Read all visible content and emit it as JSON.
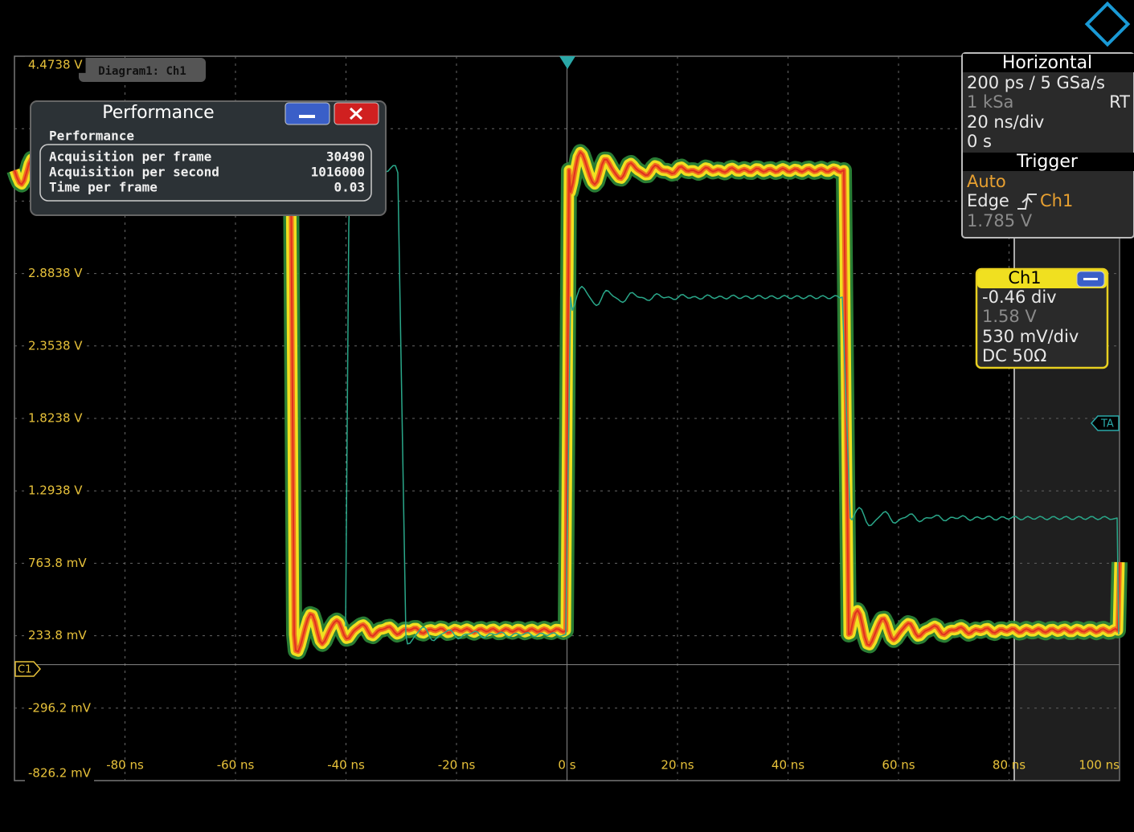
{
  "diagram_label": "Diagram1: Ch1",
  "y_axis_labels": [
    "4.4738 V",
    "2.8838 V",
    "2.3538 V",
    "1.8238 V",
    "1.2938 V",
    "763.8 mV",
    "233.8 mV",
    "-296.2 mV",
    "-826.2 mV"
  ],
  "x_axis_labels": [
    "-80 ns",
    "-60 ns",
    "-40 ns",
    "-20 ns",
    "0 s",
    "20 ns",
    "40 ns",
    "60 ns",
    "80 ns",
    "100 ns"
  ],
  "performance": {
    "title": "Performance",
    "section": "Performance",
    "rows": [
      [
        "Acquisition per frame",
        "30490"
      ],
      [
        "Acquisition per second",
        "1016000"
      ],
      [
        "Time per frame",
        "0.03"
      ]
    ]
  },
  "horizontal": {
    "title": "Horizontal",
    "resolution": "200 ps / 5 GSa/s",
    "record_length": "1 kSa",
    "mode": "RT",
    "scale": "20 ns/div",
    "position": "0 s"
  },
  "trigger": {
    "title": "Trigger",
    "mode": "Auto",
    "type": "Edge",
    "source": "Ch1",
    "level": "1.785 V"
  },
  "channel": {
    "title": "Ch1",
    "offset": "-0.46 div",
    "offset_voltage": "1.58 V",
    "scale": "530 mV/div",
    "coupling": "DC 50Ω"
  },
  "markers": {
    "channel": "C1",
    "trigger": "TA"
  }
}
